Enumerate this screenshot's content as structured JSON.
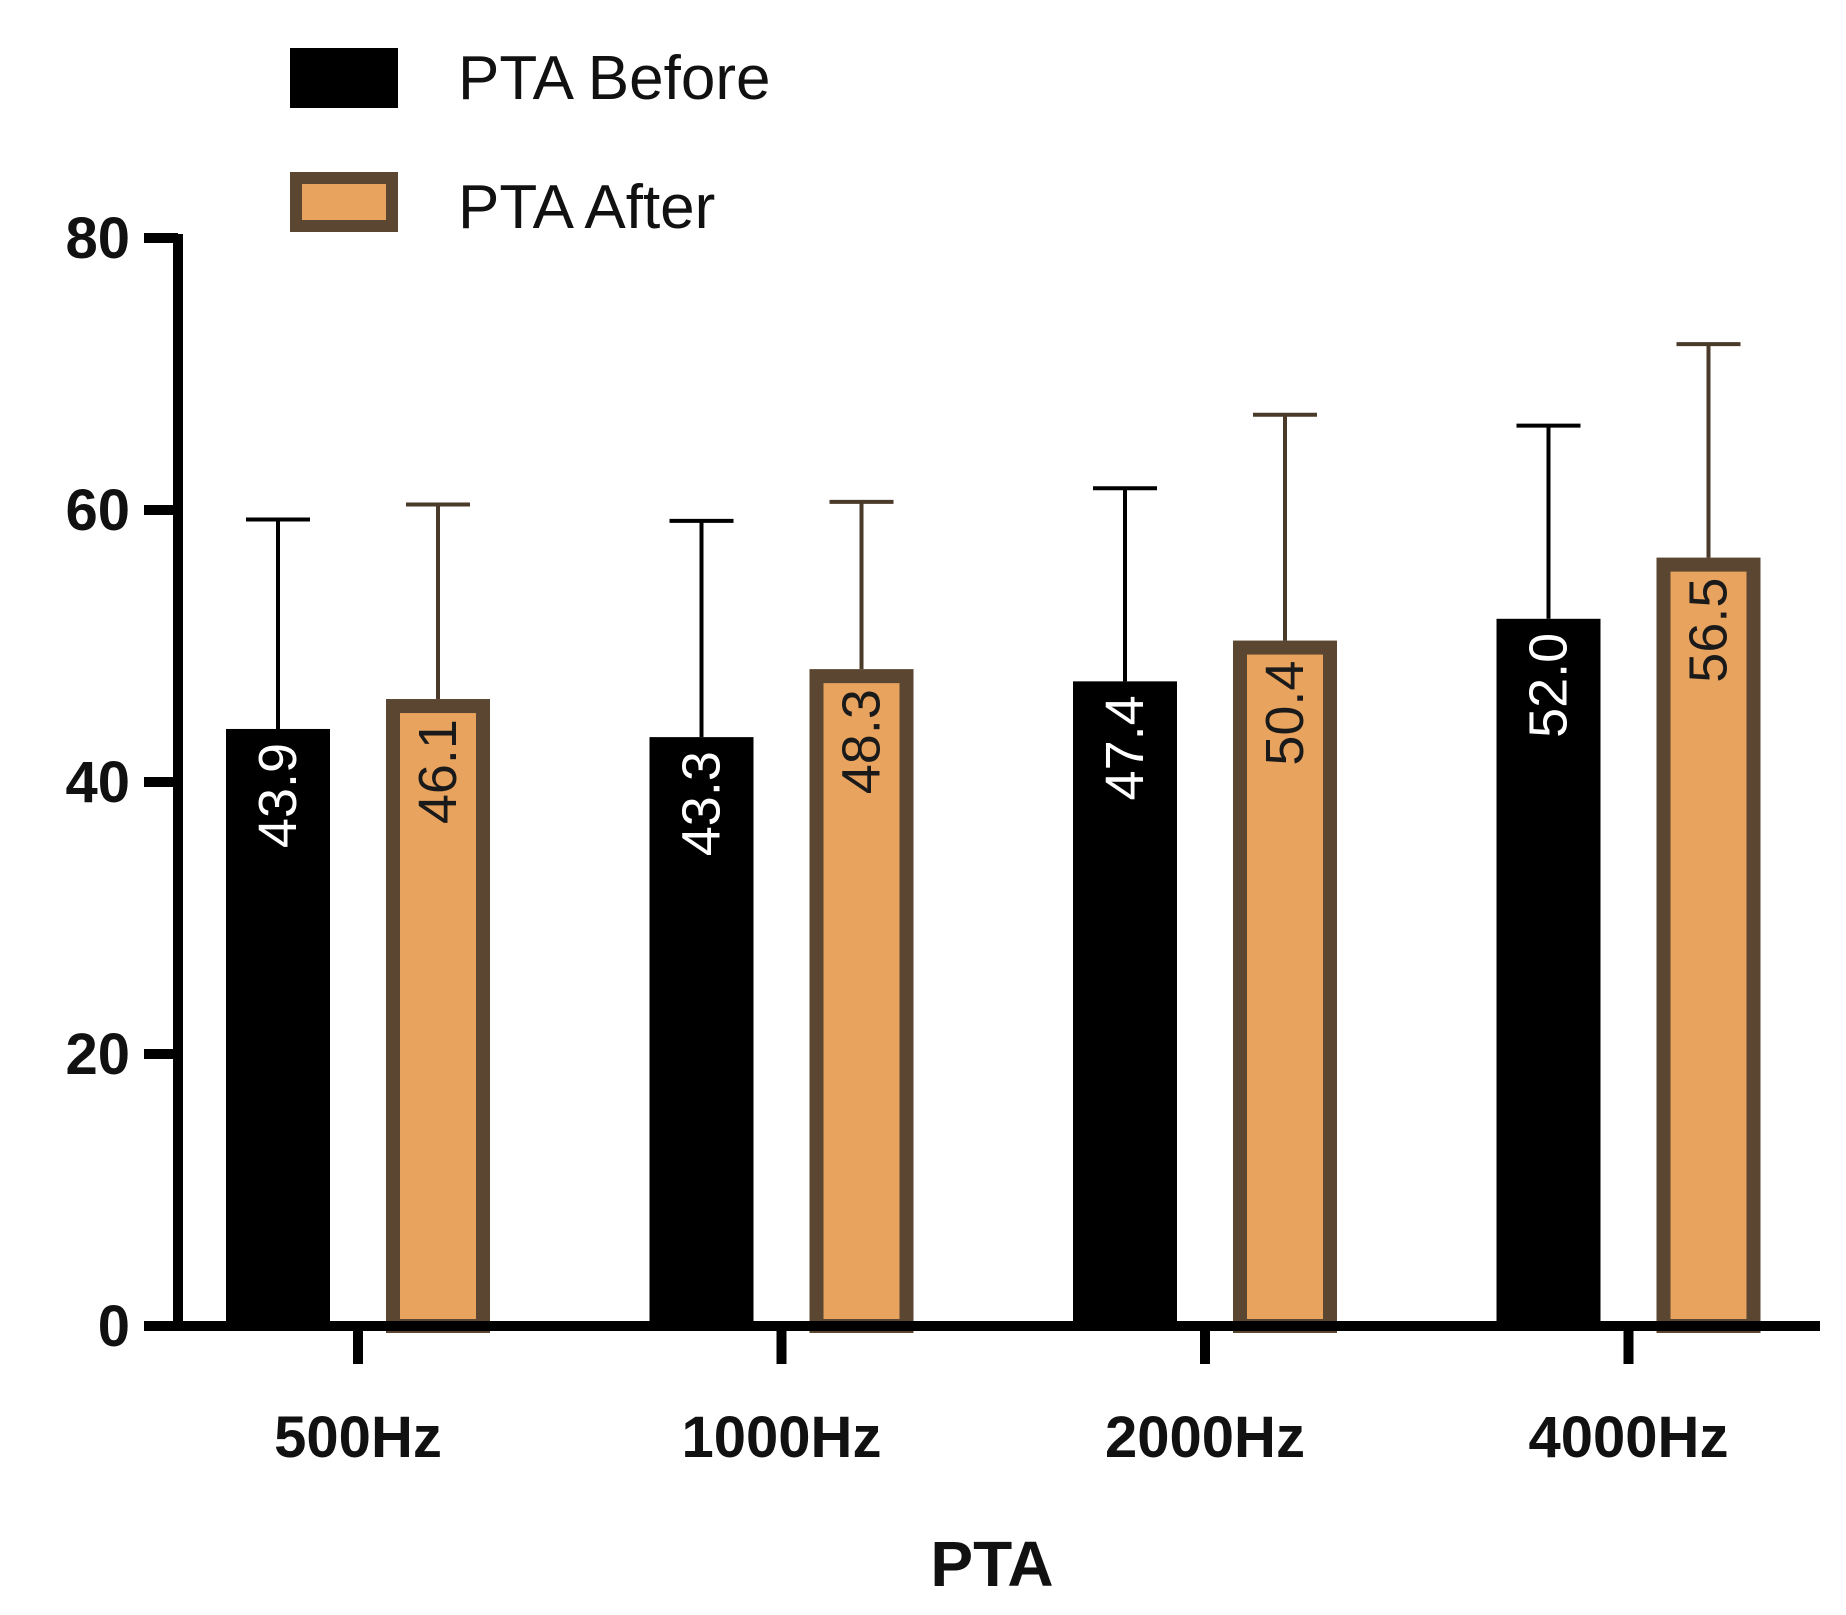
{
  "chart_data": {
    "type": "bar",
    "title": "",
    "xlabel": "PTA",
    "ylabel": "",
    "ylim": [
      0,
      80
    ],
    "yticks": [
      0,
      20,
      40,
      60,
      80
    ],
    "categories": [
      "500Hz",
      "1000Hz",
      "2000Hz",
      "4000Hz"
    ],
    "legend_position": "top-left",
    "series": [
      {
        "name": "PTA Before",
        "values": [
          43.9,
          43.3,
          47.4,
          52.0
        ],
        "labels": [
          "43.9",
          "43.3",
          "47.4",
          "52.0"
        ],
        "error_upper": [
          59.3,
          59.2,
          61.6,
          66.2
        ],
        "fill": "#000000",
        "stroke": "#000000",
        "label_color": "#ffffff"
      },
      {
        "name": "PTA After",
        "values": [
          46.1,
          48.3,
          50.4,
          56.5
        ],
        "labels": [
          "46.1",
          "48.3",
          "50.4",
          "56.5"
        ],
        "error_upper": [
          60.4,
          60.6,
          67.0,
          72.2
        ],
        "fill": "#e8a35f",
        "stroke": "#5a4631",
        "label_color": "#1a1a1a"
      }
    ]
  }
}
